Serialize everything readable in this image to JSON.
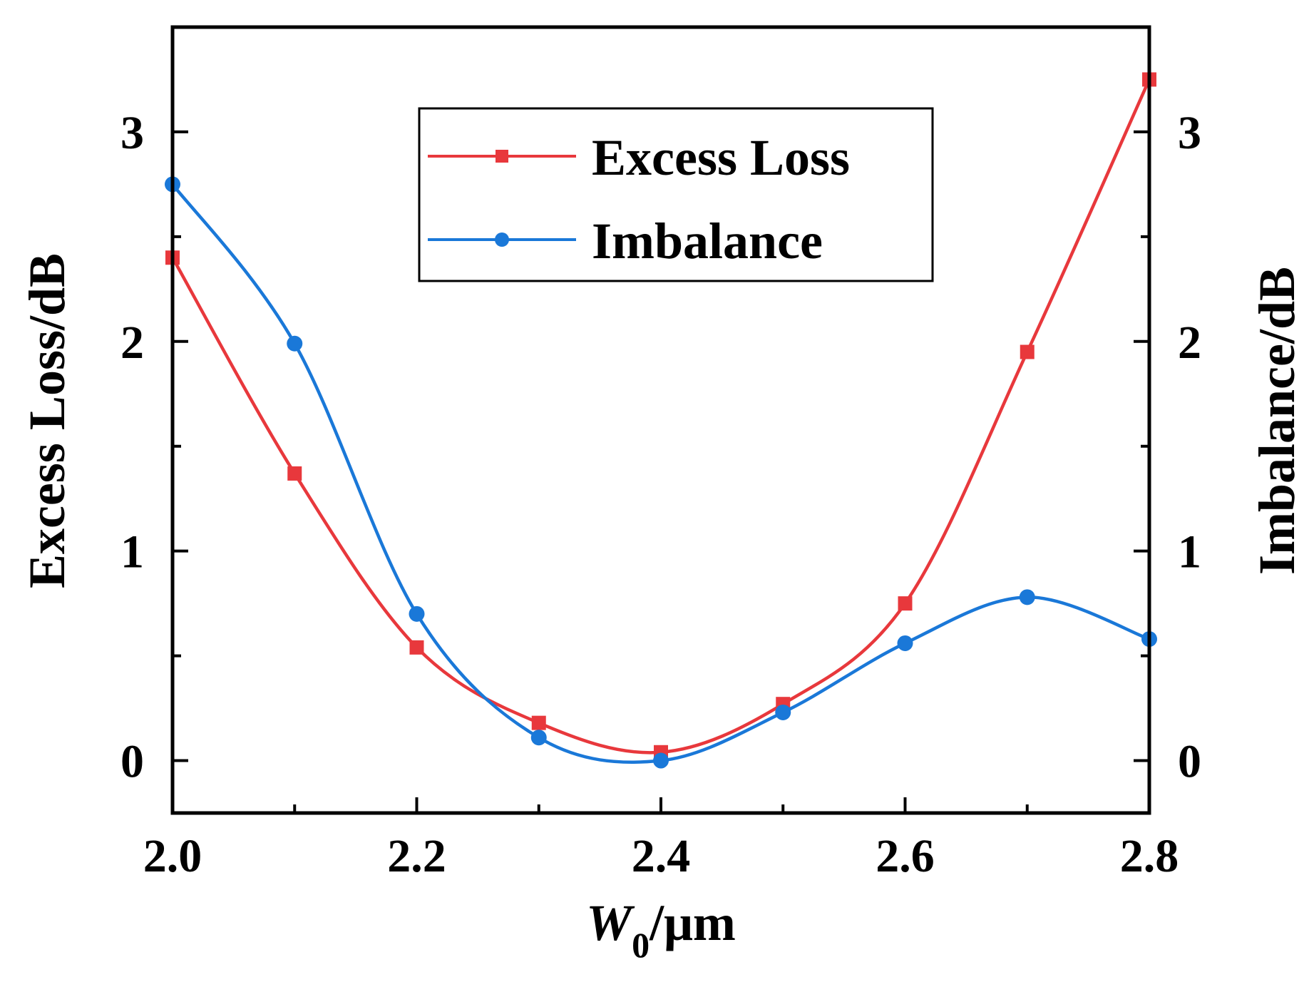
{
  "chart_data": {
    "type": "line",
    "x": [
      2.0,
      2.1,
      2.2,
      2.3,
      2.4,
      2.5,
      2.6,
      2.7,
      2.8
    ],
    "xlim": [
      2.0,
      2.8
    ],
    "ylim": [
      -0.25,
      3.5
    ],
    "y2lim": [
      -0.25,
      3.5
    ],
    "x_ticks": [
      "2.0",
      "2.2",
      "2.4",
      "2.6",
      "2.8"
    ],
    "y_ticks": [
      "0",
      "1",
      "2",
      "3"
    ],
    "y2_ticks": [
      "0",
      "1",
      "2",
      "3"
    ],
    "xlabel_main": "W",
    "xlabel_sub": "0",
    "xlabel_unit": "/μm",
    "ylabel": "Excess Loss/dB",
    "y2label": "Imbalance/dB",
    "series": [
      {
        "name": "Excess Loss",
        "color": "#e8383c",
        "marker": "square",
        "axis": "left",
        "values": [
          2.4,
          1.37,
          0.54,
          0.18,
          0.04,
          0.27,
          0.75,
          1.95,
          3.25
        ]
      },
      {
        "name": "Imbalance",
        "color": "#1a78d8",
        "marker": "circle",
        "axis": "right",
        "values": [
          2.75,
          1.99,
          0.7,
          0.11,
          0.0,
          0.23,
          0.56,
          0.78,
          0.58
        ]
      }
    ],
    "legend_position": "top-center"
  }
}
